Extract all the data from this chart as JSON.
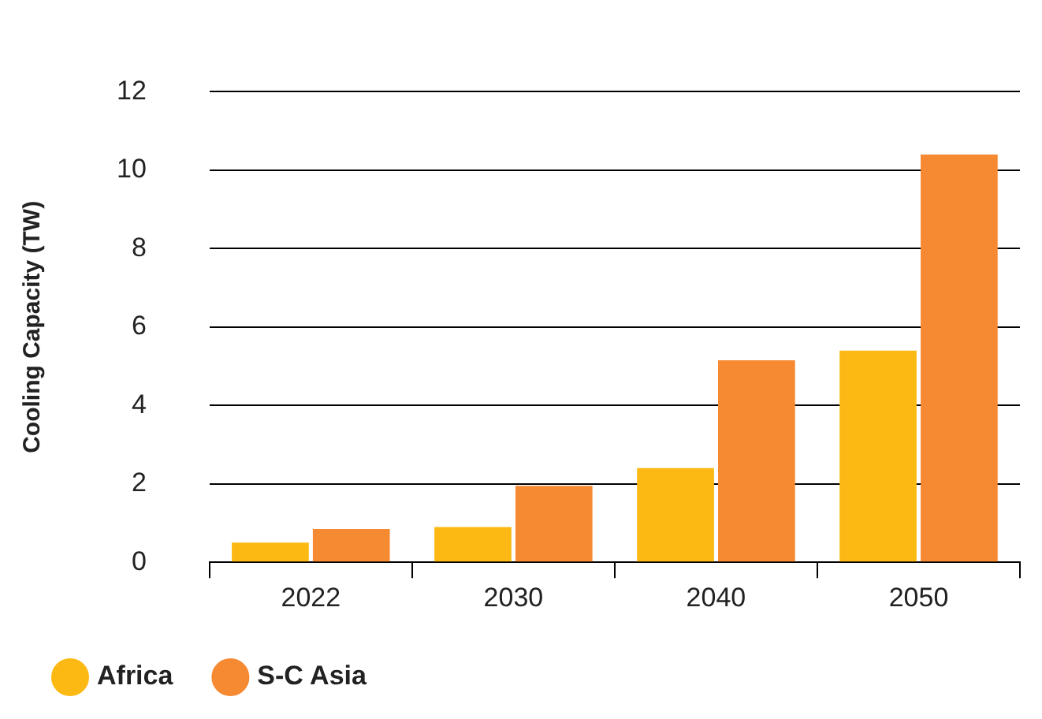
{
  "chart_data": {
    "type": "bar",
    "ylabel": "Cooling Capacity (TW)",
    "categories": [
      "2022",
      "2030",
      "2040",
      "2050"
    ],
    "series": [
      {
        "name": "Africa",
        "color": "#fdb913",
        "values": [
          0.5,
          0.9,
          2.4,
          5.4
        ]
      },
      {
        "name": "S-C Asia",
        "color": "#f58a32",
        "values": [
          0.85,
          1.95,
          5.15,
          10.4
        ]
      }
    ],
    "ylim": [
      0,
      12
    ],
    "yticks": [
      0,
      2,
      4,
      6,
      8,
      10,
      12
    ],
    "grid": "y",
    "legend": "bottom left"
  }
}
